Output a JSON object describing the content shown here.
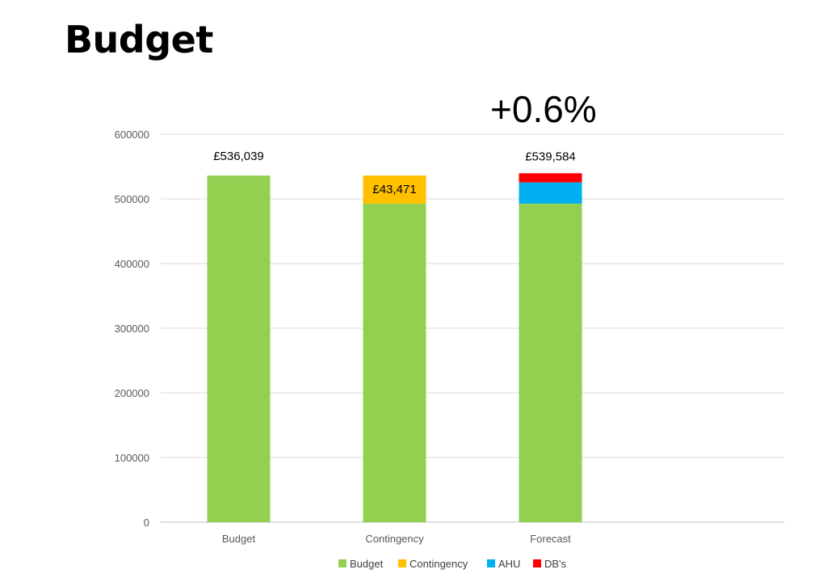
{
  "slide": {
    "title": "Budget",
    "headline": "+0.6%"
  },
  "chart_data": {
    "type": "bar",
    "stacked": true,
    "categories": [
      "Budget",
      "Contingency",
      "Forecast"
    ],
    "series": [
      {
        "name": "Budget",
        "color": "#92D050",
        "values": [
          536039,
          492568,
          492568
        ]
      },
      {
        "name": "Contingency",
        "color": "#FFC000",
        "values": [
          0,
          43471,
          0
        ]
      },
      {
        "name": "AHU",
        "color": "#00B0F0",
        "values": [
          0,
          0,
          32900
        ]
      },
      {
        "name": "DB's",
        "color": "#FF0000",
        "values": [
          0,
          0,
          14116
        ]
      }
    ],
    "data_labels": [
      "£536,039",
      "£43,471",
      "£539,584"
    ],
    "yticks": [
      "0",
      "100000",
      "200000",
      "300000",
      "400000",
      "500000",
      "600000"
    ],
    "ylim": [
      0,
      600000
    ],
    "grid": true,
    "legend_position": "bottom"
  }
}
